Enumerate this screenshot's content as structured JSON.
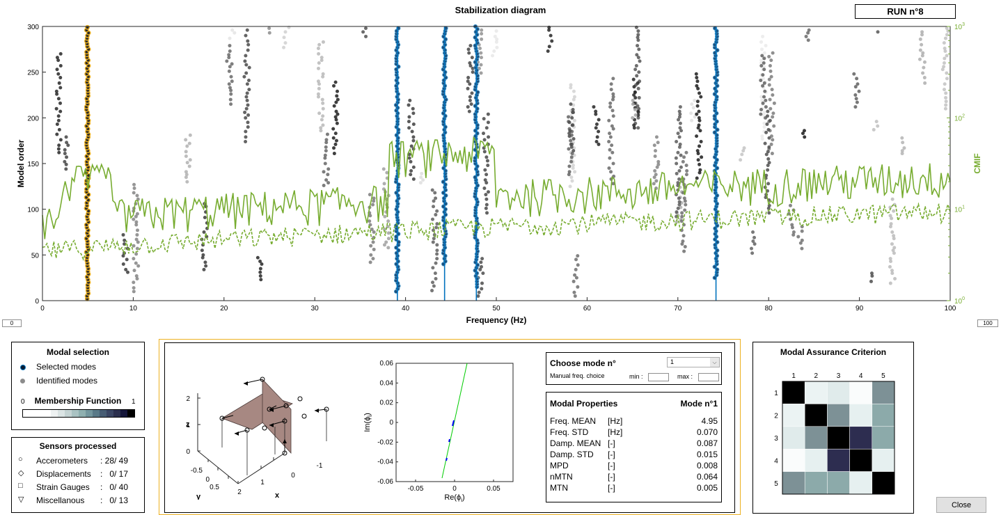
{
  "header": {
    "title": "Stabilization diagram",
    "run_label": "RUN n°8"
  },
  "chart_data": {
    "type": "scatter",
    "title": "Stabilization diagram",
    "xlabel": "Frequency (Hz)",
    "ylabel": "Model order",
    "ylabel_right": "CMIF",
    "xlim": [
      0,
      100
    ],
    "ylim": [
      0,
      300
    ],
    "ylim_right": [
      1,
      1000
    ],
    "yscale_right": "log",
    "x_ticks": [
      "0",
      "10",
      "20",
      "30",
      "40",
      "50",
      "60",
      "70",
      "80",
      "90",
      "100"
    ],
    "y_ticks": [
      "0",
      "50",
      "100",
      "150",
      "200",
      "250",
      "300"
    ],
    "y_right_ticks": [
      "10^0",
      "10^1",
      "10^2",
      "10^3"
    ],
    "selected_mode_lines_hz": [
      4.95,
      39.1,
      44.3,
      47.8,
      74.2
    ],
    "colors": {
      "cmif": "#77ac30",
      "selected": "#0072bd",
      "highlight": "#edb120",
      "identified": "#808080"
    }
  },
  "range_inputs": {
    "min": "0",
    "max": "100"
  },
  "modal_selection": {
    "title": "Modal selection",
    "selected": "Selected modes",
    "identified": "Identified modes",
    "membership_title": "Membership Function",
    "membership_min": "0",
    "membership_max": "1"
  },
  "sensors": {
    "title": "Sensors processed",
    "items": [
      {
        "symbol": "○",
        "label": "Accerometers",
        "count": ": 28/ 49"
      },
      {
        "symbol": "◇",
        "label": "Displacements",
        "count": ":   0/ 17"
      },
      {
        "symbol": "□",
        "label": "Strain Gauges",
        "count": ":   0/ 40"
      },
      {
        "symbol": "▽",
        "label": "Miscellanous",
        "count": ":   0/ 13"
      }
    ]
  },
  "mode_shape_3d": {
    "z_label": "z",
    "y_label": "y",
    "x_label": "x",
    "z_ticks": [
      "0",
      "1",
      "2"
    ],
    "y_ticks": [
      "-0.5",
      "0",
      "0.5"
    ],
    "x_ticks": [
      "2",
      "1",
      "0",
      "-1"
    ]
  },
  "complexity_plot": {
    "xlabel": "Re(ϕ",
    "xlabel_sub": "i",
    "ylabel": "Im(ϕ",
    "ylabel_sub": "i",
    "paren": ")",
    "x_ticks": [
      "-0.05",
      "0",
      "0.05"
    ],
    "y_ticks": [
      "0.06",
      "0.04",
      "0.02",
      "0",
      "-0.02",
      "-0.04",
      "-0.06"
    ]
  },
  "choose_mode": {
    "title": "Choose mode n°",
    "selected_value": "1",
    "manual_label": "Manual freq. choice",
    "min_label": "min :",
    "max_label": "max :"
  },
  "modal_properties": {
    "title": "Modal Properties",
    "mode_label": "Mode n°1",
    "rows": [
      {
        "name": "Freq. MEAN",
        "unit": "[Hz]",
        "value": "4.95"
      },
      {
        "name": "Freq. STD",
        "unit": "[Hz]",
        "value": "0.070"
      },
      {
        "name": "Damp. MEAN",
        "unit": "[-]",
        "value": "0.087"
      },
      {
        "name": "Damp. STD",
        "unit": "[-]",
        "value": "0.015"
      },
      {
        "name": "MPD",
        "unit": "[-]",
        "value": "0.008"
      },
      {
        "name": "nMTN",
        "unit": "[-]",
        "value": "0.064"
      },
      {
        "name": "MTN",
        "unit": "[-]",
        "value": "0.005"
      }
    ]
  },
  "mac": {
    "title": "Modal Assurance Criterion",
    "labels": [
      "1",
      "2",
      "3",
      "4",
      "5"
    ],
    "matrix": [
      [
        1.0,
        0.08,
        0.12,
        0.02,
        0.5
      ],
      [
        0.08,
        1.0,
        0.5,
        0.1,
        0.4
      ],
      [
        0.12,
        0.5,
        1.0,
        0.85,
        0.4
      ],
      [
        0.02,
        0.1,
        0.85,
        1.0,
        0.1
      ],
      [
        0.5,
        0.4,
        0.4,
        0.1,
        1.0
      ]
    ]
  },
  "close_button": "Close"
}
